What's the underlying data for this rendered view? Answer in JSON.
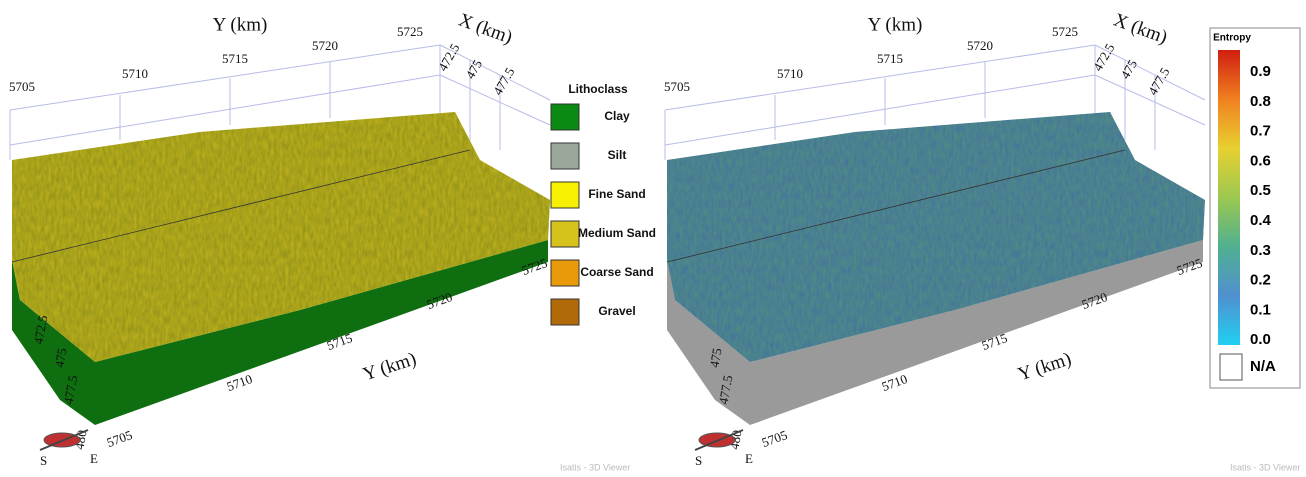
{
  "left_panel": {
    "top_axis_y_label": "Y (km)",
    "top_axis_x_label": "X (km)",
    "bottom_axis_y_label": "Y (km)",
    "top_y_ticks": [
      "5705",
      "5710",
      "5715",
      "5720",
      "5725"
    ],
    "top_x_ticks": [
      "472.5",
      "475",
      "477.5"
    ],
    "bottom_y_ticks": [
      "5705",
      "5710",
      "5715",
      "5720",
      "5725"
    ],
    "side_x_ticks": [
      "472.5",
      "475",
      "477.5",
      "480"
    ],
    "compass": [
      "S",
      "E"
    ],
    "surface_color": "#b8ad1e",
    "side_color": "#0e6e10",
    "watermark": "Isatis - 3D Viewer",
    "legend": {
      "title": "Lithoclass",
      "items": [
        {
          "label": "Clay",
          "color": "#0a8a12"
        },
        {
          "label": "Silt",
          "color": "#9aa89c"
        },
        {
          "label": "Fine Sand",
          "color": "#f7f000"
        },
        {
          "label": "Medium Sand",
          "color": "#d6c21a"
        },
        {
          "label": "Coarse Sand",
          "color": "#e89a0a"
        },
        {
          "label": "Gravel",
          "color": "#b06a08"
        }
      ]
    }
  },
  "right_panel": {
    "top_axis_y_label": "Y (km)",
    "top_axis_x_label": "X (km)",
    "bottom_axis_y_label": "Y (km)",
    "top_y_ticks": [
      "5705",
      "5710",
      "5715",
      "5720",
      "5725"
    ],
    "top_x_ticks": [
      "472.5",
      "475",
      "477.5"
    ],
    "bottom_y_ticks": [
      "5705",
      "5710",
      "5715",
      "5720",
      "5725"
    ],
    "side_x_ticks": [
      "475",
      "477.5",
      "480"
    ],
    "compass": [
      "S",
      "E"
    ],
    "surface_color": "#4f8a86",
    "side_color": "#9a9a9a",
    "watermark": "Isatis - 3D Viewer",
    "colorbar": {
      "title": "Entropy",
      "ticks": [
        "0.9",
        "0.8",
        "0.7",
        "0.6",
        "0.5",
        "0.4",
        "0.3",
        "0.2",
        "0.1",
        "0.0"
      ],
      "colors": [
        "#d01e10",
        "#f08020",
        "#e8d030",
        "#9cc850",
        "#50b090",
        "#5090d0",
        "#20d0f0"
      ],
      "na_label": "N/A"
    }
  }
}
